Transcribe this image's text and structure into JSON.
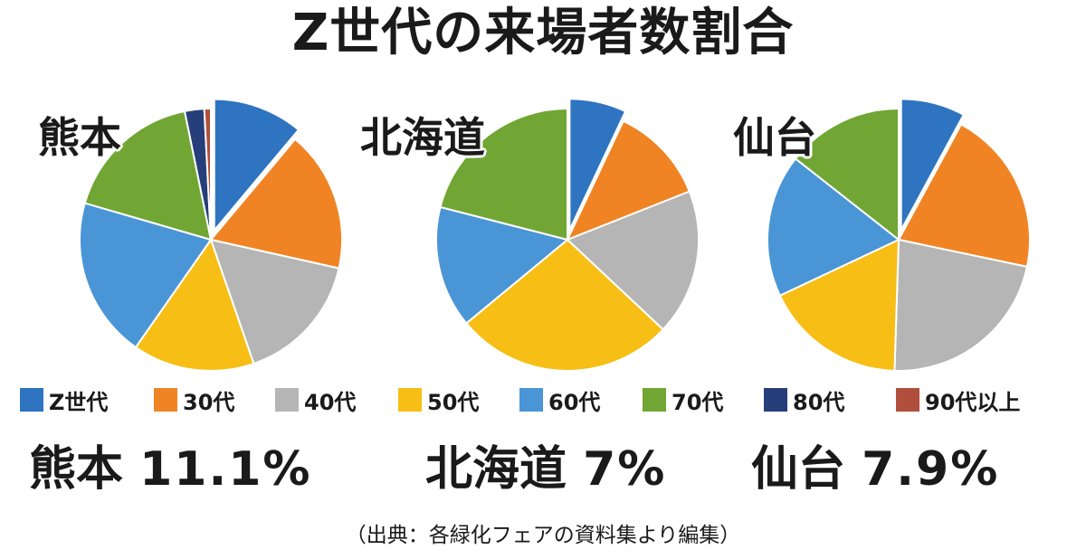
{
  "title": "Z世代の来場者数割合",
  "legend": [
    {
      "label": "Z世代",
      "color": "#2e74c0"
    },
    {
      "label": "30代",
      "color": "#f08424"
    },
    {
      "label": "40代",
      "color": "#b5b5b5"
    },
    {
      "label": "50代",
      "color": "#f7be16"
    },
    {
      "label": "60代",
      "color": "#4a95d6"
    },
    {
      "label": "70代",
      "color": "#71a634"
    },
    {
      "label": "80代",
      "color": "#263f7a"
    },
    {
      "label": "90代以上",
      "color": "#b04f3b"
    }
  ],
  "chart_data": [
    {
      "type": "pie",
      "title": "熊本",
      "categories": [
        "Z世代",
        "30代",
        "40代",
        "50代",
        "60代",
        "70代",
        "80代",
        "90代以上"
      ],
      "values": [
        11.1,
        17.4,
        16.2,
        15.0,
        19.8,
        17.3,
        2.4,
        0.8
      ],
      "exploded": "Z世代"
    },
    {
      "type": "pie",
      "title": "北海道",
      "categories": [
        "Z世代",
        "30代",
        "40代",
        "50代",
        "60代",
        "70代",
        "80代",
        "90代以上"
      ],
      "values": [
        7.0,
        12.0,
        18.0,
        27.0,
        15.0,
        21.0,
        0,
        0
      ],
      "exploded": "Z世代"
    },
    {
      "type": "pie",
      "title": "仙台",
      "categories": [
        "Z世代",
        "30代",
        "40代",
        "50代",
        "60代",
        "70代",
        "80代",
        "90代以上"
      ],
      "values": [
        7.9,
        20.4,
        22.2,
        17.5,
        17.6,
        14.4,
        0,
        0
      ],
      "exploded": "Z世代"
    }
  ],
  "stats": [
    {
      "place": "熊本",
      "value": "11.1%"
    },
    {
      "place": "北海道",
      "value": "7%"
    },
    {
      "place": "仙台",
      "value": "7.9%"
    }
  ],
  "source": "（出典：各緑化フェアの資料集より編集）"
}
